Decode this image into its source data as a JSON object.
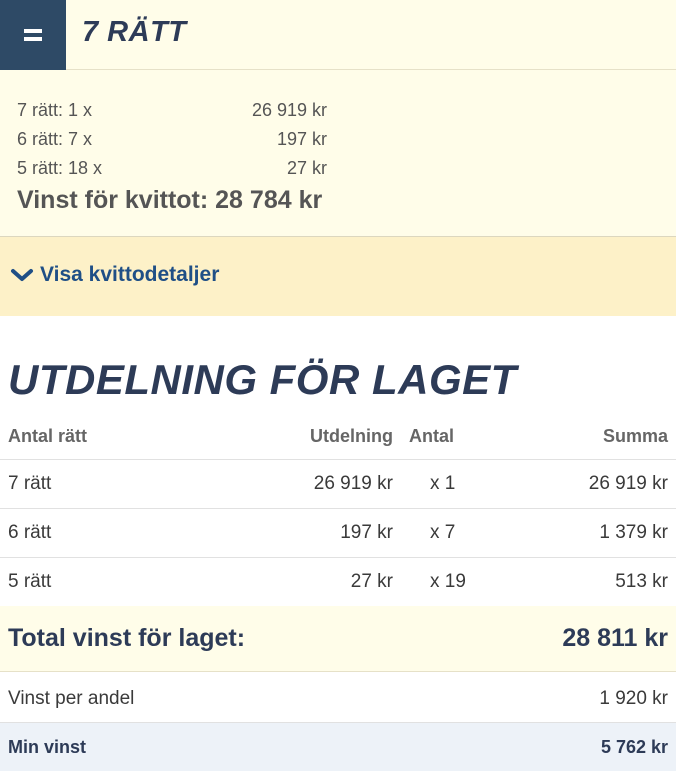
{
  "receipt": {
    "title": "7 RÄTT",
    "rows": [
      {
        "label": "7 rätt: 1 x",
        "amount": "26 919 kr"
      },
      {
        "label": "6 rätt: 7 x",
        "amount": "197 kr"
      },
      {
        "label": "5 rätt: 18 x",
        "amount": "27 kr"
      }
    ],
    "total": "Vinst för kvittot: 28 784 kr",
    "details_link": "Visa kvittodetaljer"
  },
  "team": {
    "title": "UTDELNING FÖR LAGET",
    "columns": [
      "Antal rätt",
      "Utdelning",
      "Antal",
      "Summa"
    ],
    "rows": [
      [
        "7 rätt",
        "26 919 kr",
        "x 1",
        "26 919 kr"
      ],
      [
        "6 rätt",
        "197 kr",
        "x 7",
        "1 379 kr"
      ],
      [
        "5 rätt",
        "27 kr",
        "x 19",
        "513 kr"
      ]
    ],
    "total_label": "Total vinst för laget:",
    "total_value": "28 811 kr",
    "per_share_label": "Vinst per andel",
    "per_share_value": "1 920 kr",
    "my_win_label": "Min vinst",
    "my_win_value": "5 762 kr"
  },
  "colors": {
    "navy": "#2d3b57",
    "menu_bg": "#2e4a66",
    "link": "#1f4f86",
    "receipt_bg": "#fffde9",
    "details_bg": "#fdf1c8",
    "my_win_bg": "#edf2f8"
  },
  "icons": {
    "menu": "menu-icon",
    "expand": "chevron-down-icon"
  }
}
